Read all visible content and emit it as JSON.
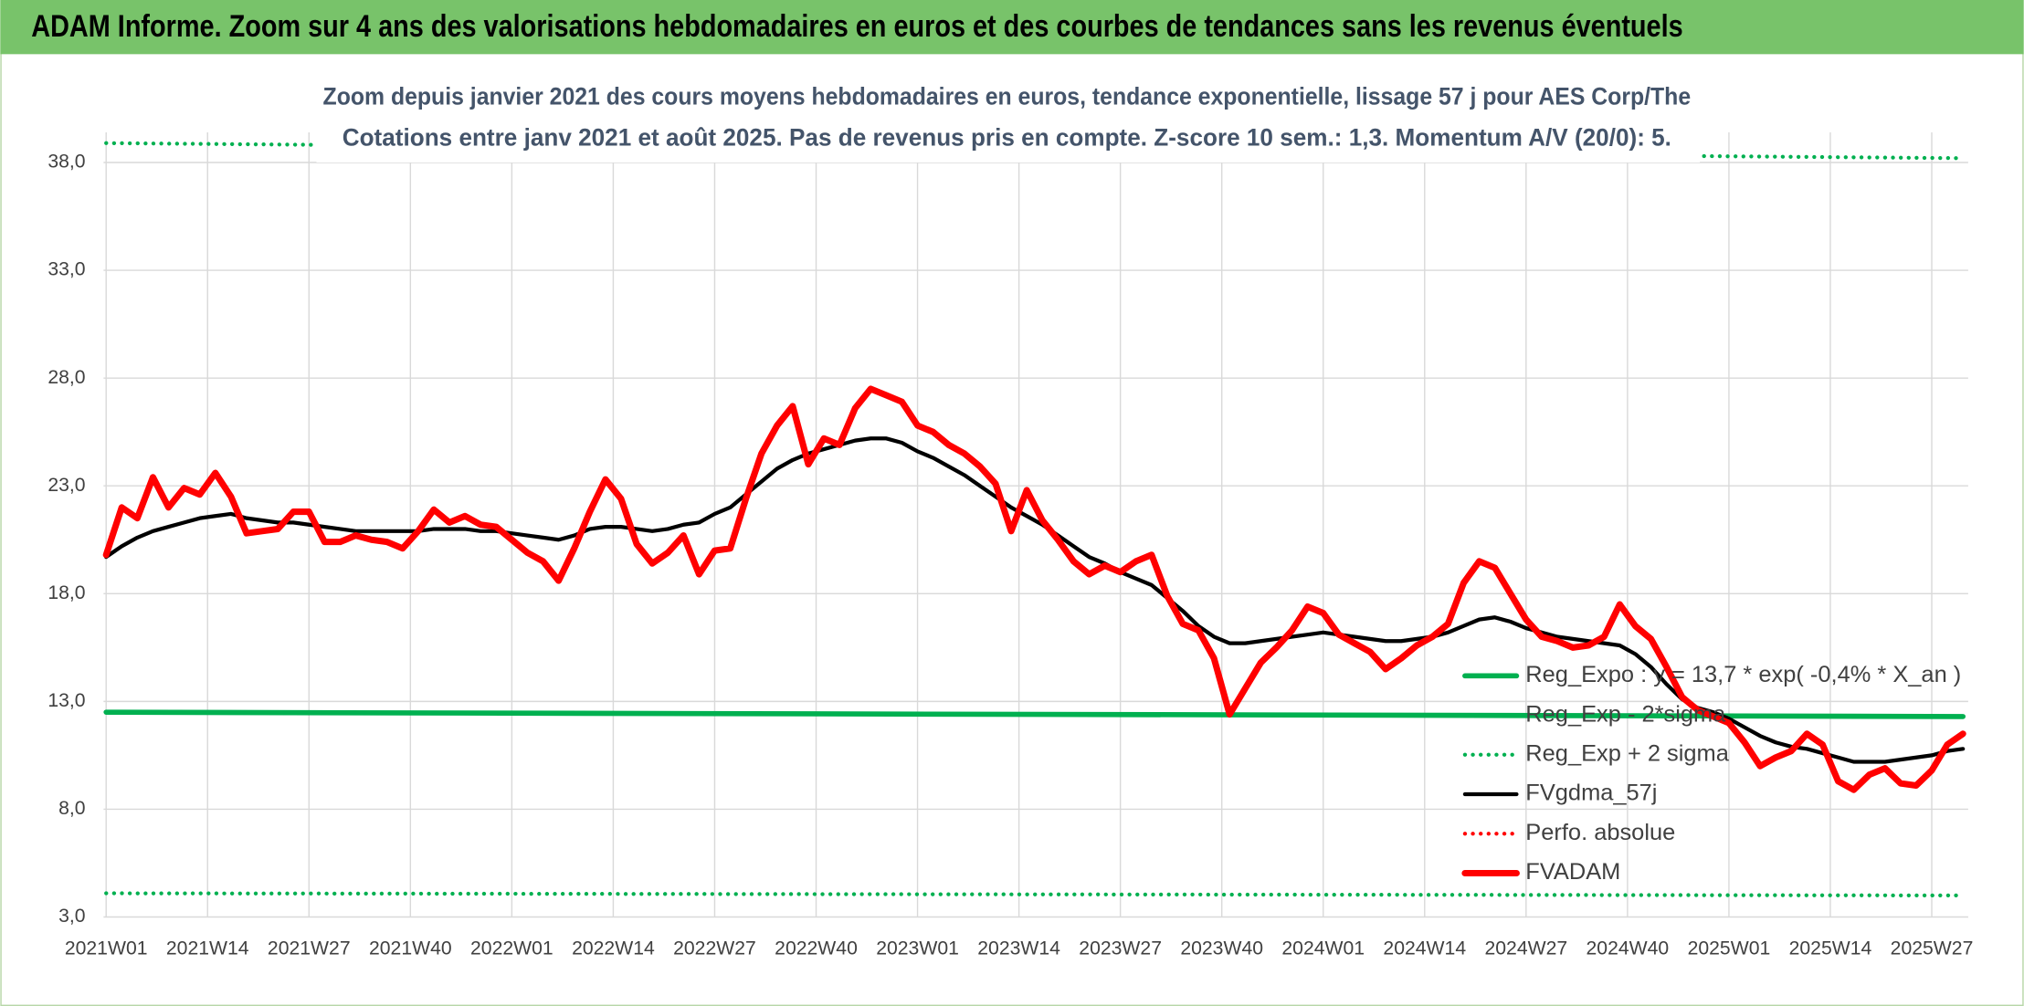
{
  "header": {
    "title": "ADAM Informe. Zoom sur 4 ans des valorisations hebdomadaires en euros et des courbes de tendances sans les revenus éventuels"
  },
  "chart_data": {
    "type": "line",
    "title": "Zoom depuis janvier 2021 des cours moyens hebdomadaires en euros, tendance exponentielle, lissage 57 j pour AES Corp/The",
    "subtitle": "Cotations entre janv 2021 et août 2025. Pas de revenus pris en compte. Z-score 10 sem.: 1,3. Momentum A/V (20/0): 5.",
    "xlim": [
      0,
      239
    ],
    "xticks": [
      {
        "value": 0,
        "label": "2021W01"
      },
      {
        "value": 13,
        "label": "2021W14"
      },
      {
        "value": 26,
        "label": "2021W27"
      },
      {
        "value": 39,
        "label": "2021W40"
      },
      {
        "value": 52,
        "label": "2022W01"
      },
      {
        "value": 65,
        "label": "2022W14"
      },
      {
        "value": 78,
        "label": "2022W27"
      },
      {
        "value": 91,
        "label": "2022W40"
      },
      {
        "value": 104,
        "label": "2023W01"
      },
      {
        "value": 117,
        "label": "2023W14"
      },
      {
        "value": 130,
        "label": "2023W27"
      },
      {
        "value": 143,
        "label": "2023W40"
      },
      {
        "value": 156,
        "label": "2024W01"
      },
      {
        "value": 169,
        "label": "2024W14"
      },
      {
        "value": 182,
        "label": "2024W27"
      },
      {
        "value": 195,
        "label": "2024W40"
      },
      {
        "value": 208,
        "label": "2025W01"
      },
      {
        "value": 221,
        "label": "2025W14"
      },
      {
        "value": 234,
        "label": "2025W27"
      }
    ],
    "ylim": [
      3,
      39.4
    ],
    "yticks": [
      {
        "value": 3,
        "label": "3,0"
      },
      {
        "value": 8,
        "label": "8,0"
      },
      {
        "value": 13,
        "label": "13,0"
      },
      {
        "value": 18,
        "label": "18,0"
      },
      {
        "value": 23,
        "label": "23,0"
      },
      {
        "value": 28,
        "label": "28,0"
      },
      {
        "value": 33,
        "label": "33,0"
      },
      {
        "value": 38,
        "label": "38,0"
      }
    ],
    "grid": true,
    "x": [
      0,
      2,
      4,
      6,
      8,
      10,
      12,
      14,
      16,
      18,
      20,
      22,
      24,
      26,
      28,
      30,
      32,
      34,
      36,
      38,
      40,
      42,
      44,
      46,
      48,
      50,
      52,
      54,
      56,
      58,
      60,
      62,
      64,
      66,
      68,
      70,
      72,
      74,
      76,
      78,
      80,
      82,
      84,
      86,
      88,
      90,
      92,
      94,
      96,
      98,
      100,
      102,
      104,
      106,
      108,
      110,
      112,
      114,
      116,
      118,
      120,
      122,
      124,
      126,
      128,
      130,
      132,
      134,
      136,
      138,
      140,
      142,
      144,
      146,
      148,
      150,
      152,
      154,
      156,
      158,
      160,
      162,
      164,
      166,
      168,
      170,
      172,
      174,
      176,
      178,
      180,
      182,
      184,
      186,
      188,
      190,
      192,
      194,
      196,
      198,
      200,
      202,
      204,
      206,
      208,
      210,
      212,
      214,
      216,
      218,
      220,
      222,
      224,
      226,
      228,
      230,
      232,
      234,
      236,
      238
    ],
    "series": [
      {
        "name": "Reg_Expo : y = 13,7 * exp( -0,4% *  X_an )",
        "color": "#00b050",
        "style": "solid",
        "width": 4,
        "x": [
          0,
          238
        ],
        "values": [
          12.5,
          12.3
        ]
      },
      {
        "name": "Reg_Exp - 2*sigma",
        "color": "#00b050",
        "style": "dotted",
        "width": 3,
        "x": [
          0,
          238
        ],
        "values": [
          4.1,
          4.0
        ]
      },
      {
        "name": "Reg_Exp + 2 sigma",
        "color": "#00b050",
        "style": "dotted",
        "width": 3,
        "x": [
          0,
          238
        ],
        "values": [
          38.9,
          38.2
        ]
      },
      {
        "name": "FVgdma_57j",
        "color": "#000000",
        "style": "solid",
        "width": 3,
        "values": [
          19.7,
          20.2,
          20.6,
          20.9,
          21.1,
          21.3,
          21.5,
          21.6,
          21.7,
          21.5,
          21.4,
          21.3,
          21.3,
          21.2,
          21.1,
          21.0,
          20.9,
          20.9,
          20.9,
          20.9,
          20.9,
          21.0,
          21.0,
          21.0,
          20.9,
          20.9,
          20.8,
          20.7,
          20.6,
          20.5,
          20.7,
          21.0,
          21.1,
          21.1,
          21.0,
          20.9,
          21.0,
          21.2,
          21.3,
          21.7,
          22.0,
          22.6,
          23.2,
          23.8,
          24.2,
          24.5,
          24.7,
          24.9,
          25.1,
          25.2,
          25.2,
          25.0,
          24.6,
          24.3,
          23.9,
          23.5,
          23.0,
          22.5,
          22.0,
          21.6,
          21.2,
          20.7,
          20.2,
          19.7,
          19.4,
          19.0,
          18.7,
          18.4,
          17.8,
          17.2,
          16.5,
          16.0,
          15.7,
          15.7,
          15.8,
          15.9,
          16.0,
          16.1,
          16.2,
          16.1,
          16.0,
          15.9,
          15.8,
          15.8,
          15.9,
          16.0,
          16.2,
          16.5,
          16.8,
          16.9,
          16.7,
          16.4,
          16.2,
          16.0,
          15.9,
          15.8,
          15.7,
          15.6,
          15.2,
          14.6,
          13.8,
          13.1,
          12.7,
          12.5,
          12.2,
          11.8,
          11.4,
          11.1,
          10.9,
          10.8,
          10.6,
          10.4,
          10.2,
          10.2,
          10.2,
          10.3,
          10.4,
          10.5,
          10.7,
          10.8
        ]
      },
      {
        "name": "Perfo. absolue",
        "color": "#ff0000",
        "style": "dotted",
        "width": 3,
        "x": [],
        "values": []
      },
      {
        "name": "FVADAM",
        "color": "#ff0000",
        "style": "solid",
        "width": 5,
        "values": [
          19.8,
          22.0,
          21.5,
          23.4,
          22.0,
          22.9,
          22.6,
          23.6,
          22.5,
          20.8,
          20.9,
          21.0,
          21.8,
          21.8,
          20.4,
          20.4,
          20.7,
          20.5,
          20.4,
          20.1,
          20.9,
          21.9,
          21.3,
          21.6,
          21.2,
          21.1,
          20.5,
          19.9,
          19.5,
          18.6,
          20.1,
          21.8,
          23.3,
          22.4,
          20.3,
          19.4,
          19.9,
          20.7,
          18.9,
          20.0,
          20.1,
          22.4,
          24.5,
          25.8,
          26.7,
          24.0,
          25.2,
          24.9,
          26.6,
          27.5,
          27.2,
          26.9,
          25.8,
          25.5,
          24.9,
          24.5,
          23.9,
          23.1,
          20.9,
          22.8,
          21.4,
          20.5,
          19.5,
          18.9,
          19.3,
          19.0,
          19.5,
          19.8,
          17.9,
          16.6,
          16.3,
          15.0,
          12.4,
          13.6,
          14.8,
          15.5,
          16.3,
          17.4,
          17.1,
          16.1,
          15.7,
          15.3,
          14.5,
          15.0,
          15.6,
          16.0,
          16.6,
          18.5,
          19.5,
          19.2,
          18.0,
          16.8,
          16.0,
          15.8,
          15.5,
          15.6,
          16.0,
          17.5,
          16.5,
          15.9,
          14.6,
          13.2,
          12.6,
          12.3,
          12.0,
          11.1,
          10.0,
          10.4,
          10.7,
          11.5,
          11.0,
          9.3,
          8.9,
          9.6,
          9.9,
          9.2,
          9.1,
          9.8,
          11.0,
          11.5
        ]
      }
    ]
  }
}
